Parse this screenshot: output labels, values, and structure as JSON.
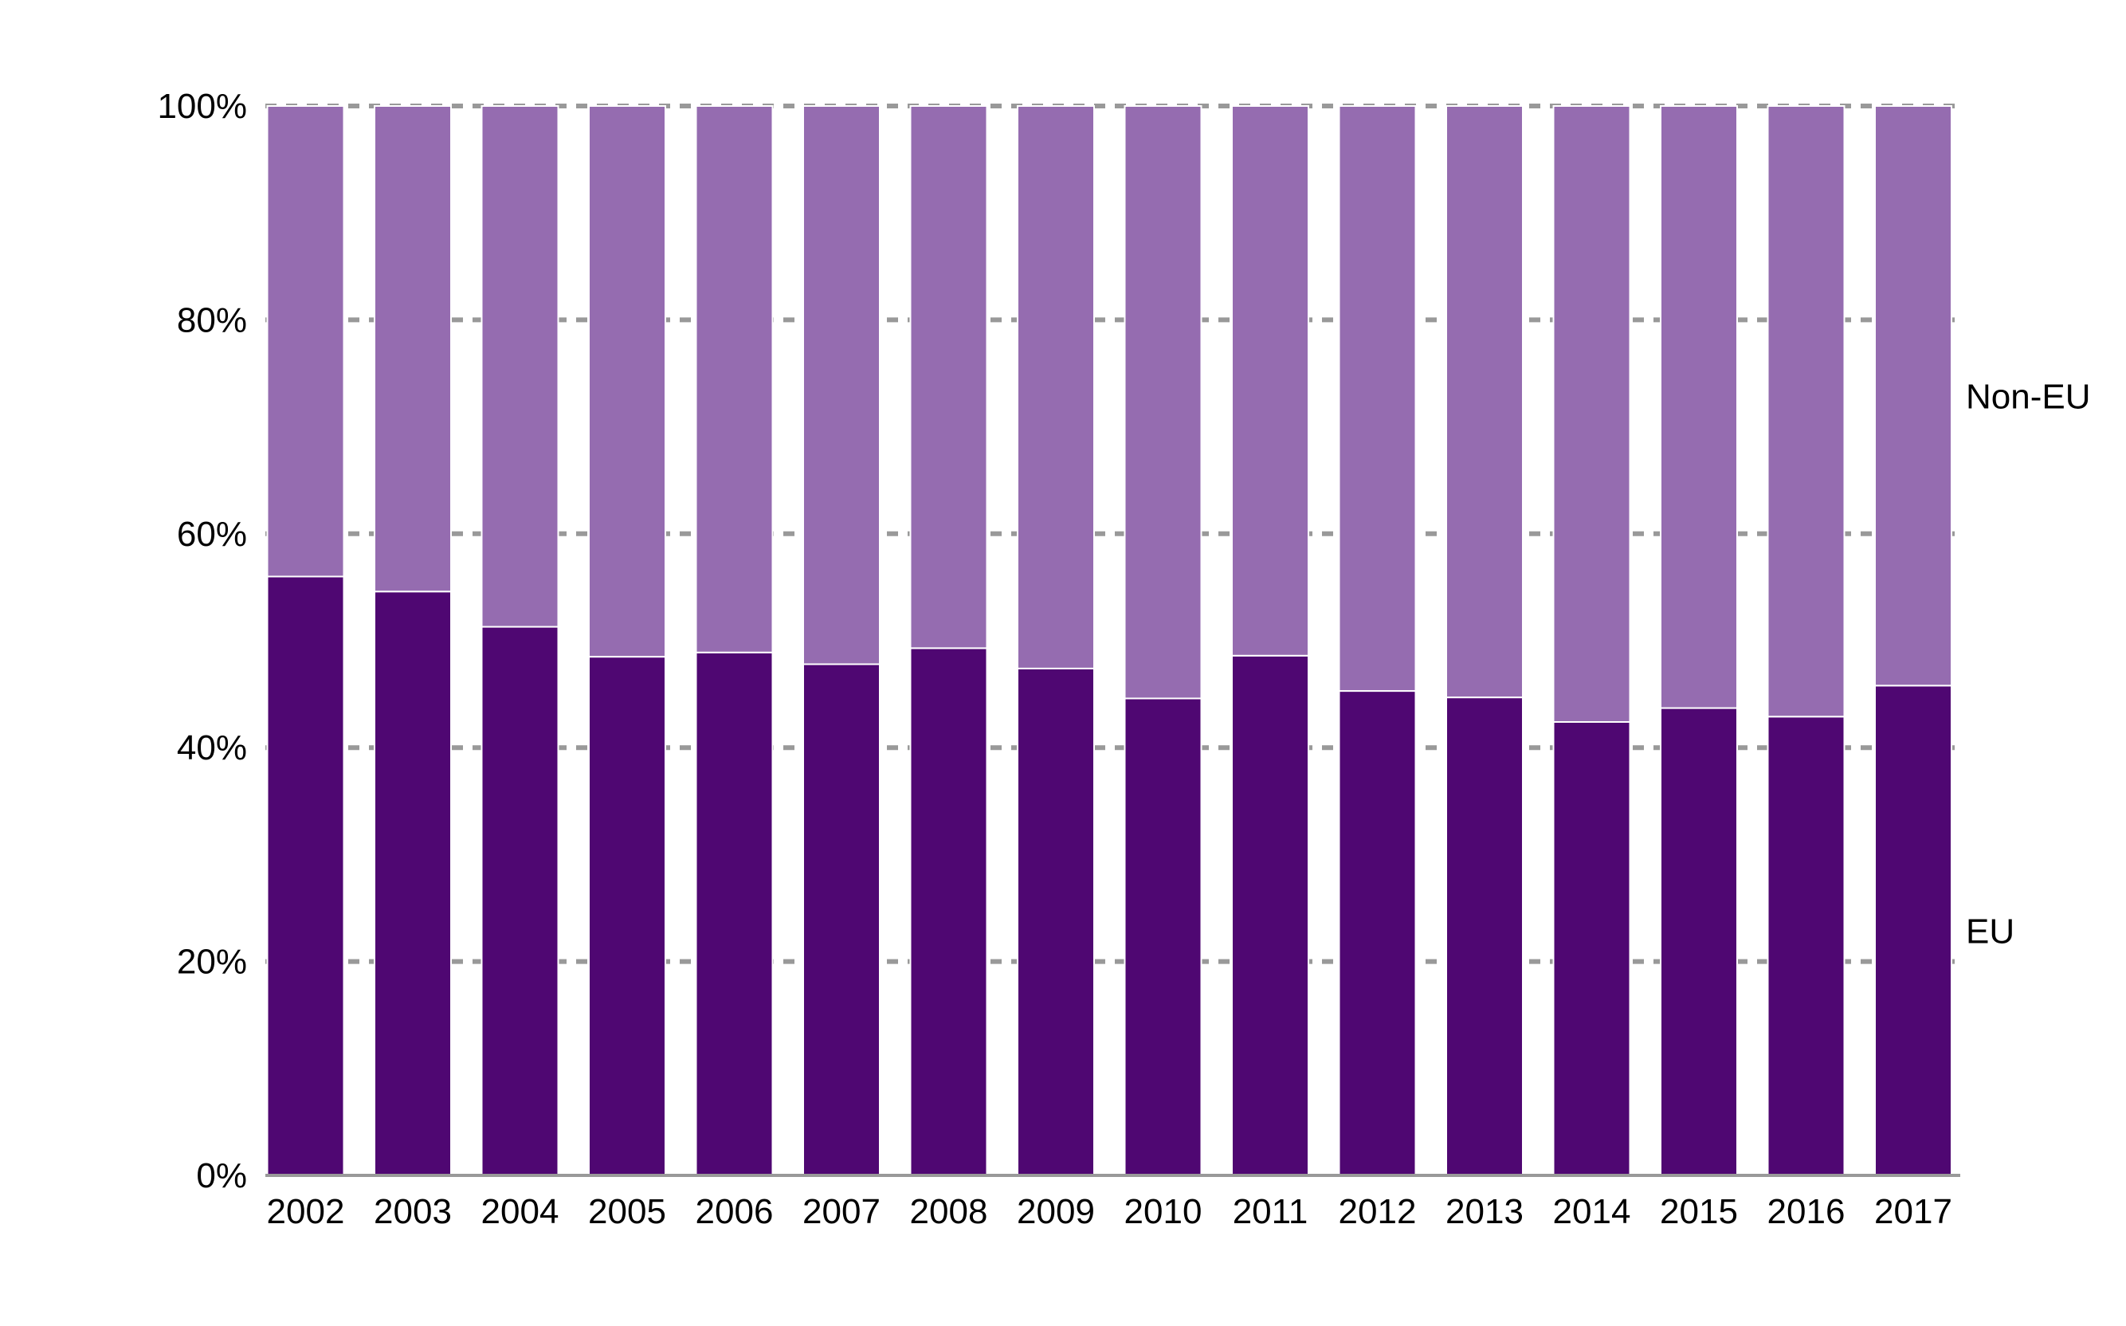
{
  "chart_data": {
    "type": "bar",
    "stacked": true,
    "title": "",
    "xlabel": "",
    "ylabel": "",
    "ylim": [
      0,
      100
    ],
    "y_ticks": [
      "0%",
      "20%",
      "40%",
      "60%",
      "80%",
      "100%"
    ],
    "y_tick_values": [
      0,
      20,
      40,
      60,
      80,
      100
    ],
    "grid": "horizontal dashed",
    "legend": "right, labels beside the last bar",
    "categories": [
      "2002",
      "2003",
      "2004",
      "2005",
      "2006",
      "2007",
      "2008",
      "2009",
      "2010",
      "2011",
      "2012",
      "2013",
      "2014",
      "2015",
      "2016",
      "2017"
    ],
    "series": [
      {
        "name": "EU",
        "color": "#4f0772",
        "values": [
          56.0,
          54.6,
          51.3,
          48.5,
          48.9,
          47.8,
          49.3,
          47.4,
          44.6,
          48.6,
          45.3,
          44.7,
          42.4,
          43.7,
          42.9,
          45.8
        ]
      },
      {
        "name": "Non-EU",
        "color": "#956cb0",
        "values": [
          44.0,
          45.4,
          48.7,
          51.5,
          51.1,
          52.2,
          50.7,
          52.6,
          55.4,
          51.4,
          54.7,
          55.3,
          57.6,
          56.3,
          57.1,
          54.2
        ]
      }
    ],
    "colors": {
      "grid": "#999999",
      "axis": "#999999",
      "text": "#000000"
    }
  }
}
